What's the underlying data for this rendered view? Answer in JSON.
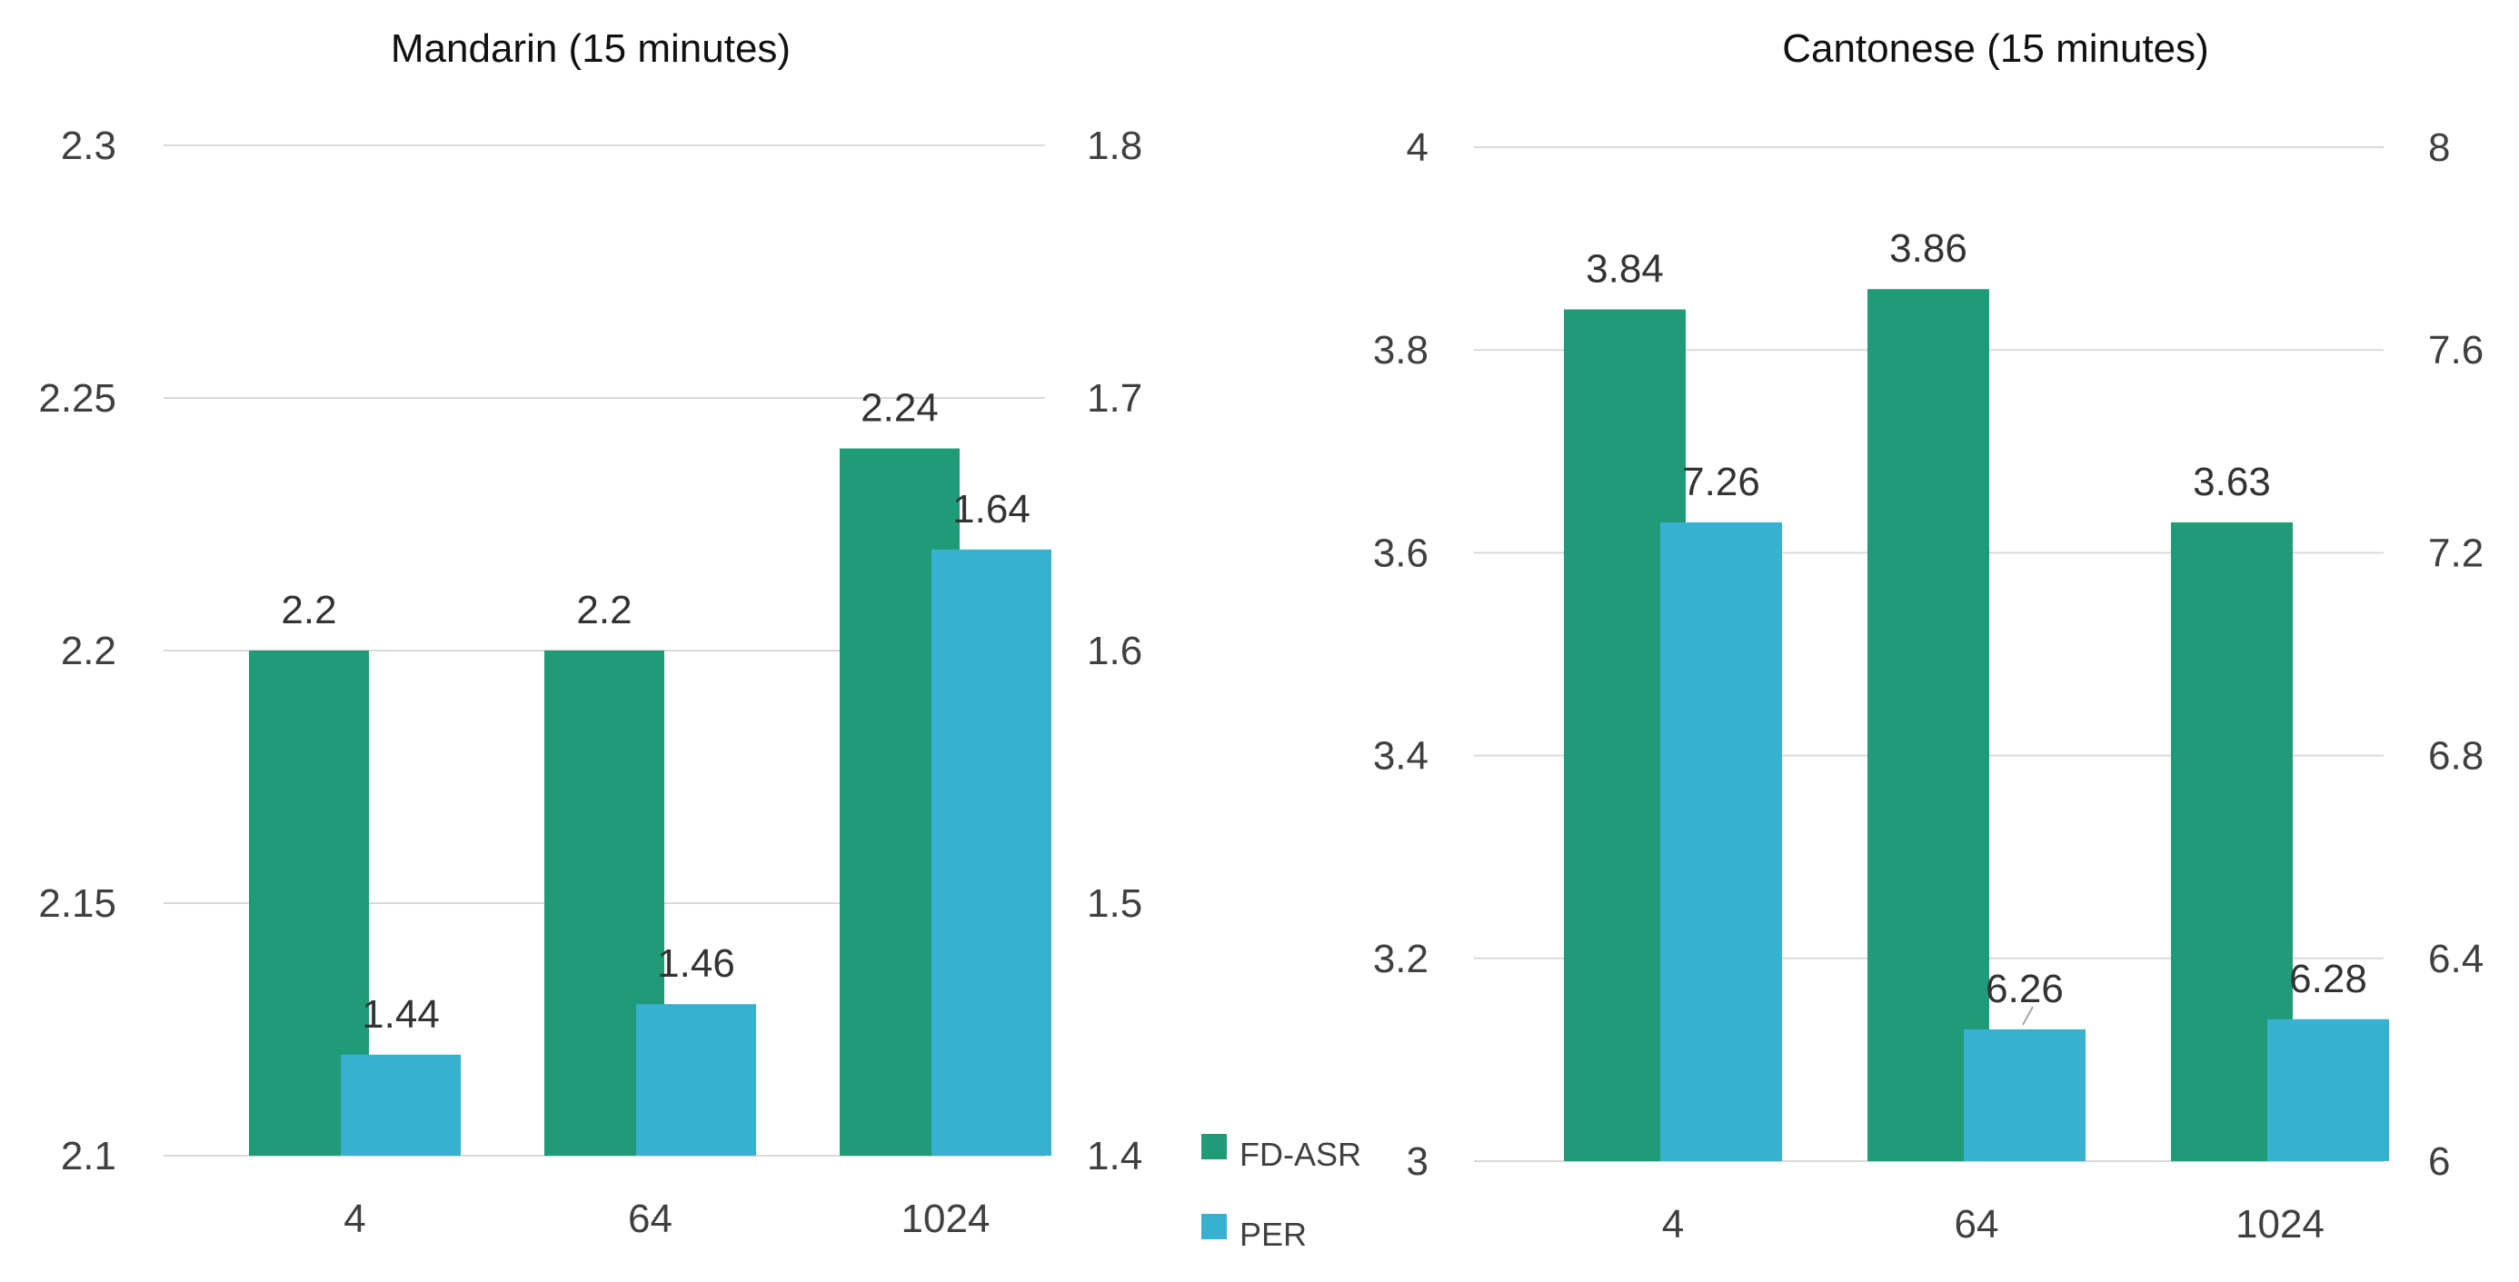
{
  "chart_data": [
    {
      "type": "bar",
      "title": "Mandarin (15 minutes)",
      "categories": [
        "4",
        "64",
        "1024"
      ],
      "series": [
        {
          "name": "FD-ASR",
          "axis": "left",
          "values": [
            2.2,
            2.2,
            2.24
          ],
          "labels": [
            "2.2",
            "2.2",
            "2.24"
          ],
          "color": "#1f9b77"
        },
        {
          "name": "PER",
          "axis": "right",
          "values": [
            1.44,
            1.46,
            1.64
          ],
          "labels": [
            "1.44",
            "1.46",
            "1.64"
          ],
          "color": "#38b0d0"
        }
      ],
      "ylim_left": [
        2.1,
        2.3
      ],
      "yticks_left": [
        "2.1",
        "2.15",
        "2.2",
        "2.25",
        "2.3"
      ],
      "ylim_right": [
        1.4,
        1.8
      ],
      "yticks_right": [
        "1.4",
        "1.5",
        "1.6",
        "1.7",
        "1.8"
      ],
      "grid": true
    },
    {
      "type": "bar",
      "title": "Cantonese (15 minutes)",
      "categories": [
        "4",
        "64",
        "1024"
      ],
      "series": [
        {
          "name": "FD-ASR",
          "axis": "left",
          "values": [
            3.84,
            3.86,
            3.63
          ],
          "labels": [
            "3.84",
            "3.86",
            "3.63"
          ],
          "color": "#1f9b77"
        },
        {
          "name": "PER",
          "axis": "right",
          "values": [
            7.26,
            6.26,
            6.28
          ],
          "labels": [
            "7.26",
            "6.26",
            "6.28"
          ],
          "color": "#38b0d0"
        }
      ],
      "ylim_left": [
        3.0,
        4.0
      ],
      "yticks_left": [
        "3",
        "3.2",
        "3.4",
        "3.6",
        "3.8",
        "4"
      ],
      "ylim_right": [
        6.0,
        8.0
      ],
      "yticks_right": [
        "6",
        "6.4",
        "6.8",
        "7.2",
        "7.6",
        "8"
      ],
      "grid": true
    }
  ],
  "legend": {
    "placement": "between charts, bottom",
    "items": [
      {
        "label": "FD-ASR",
        "color": "#1f9b77"
      },
      {
        "label": "PER",
        "color": "#38b0d0"
      }
    ]
  }
}
